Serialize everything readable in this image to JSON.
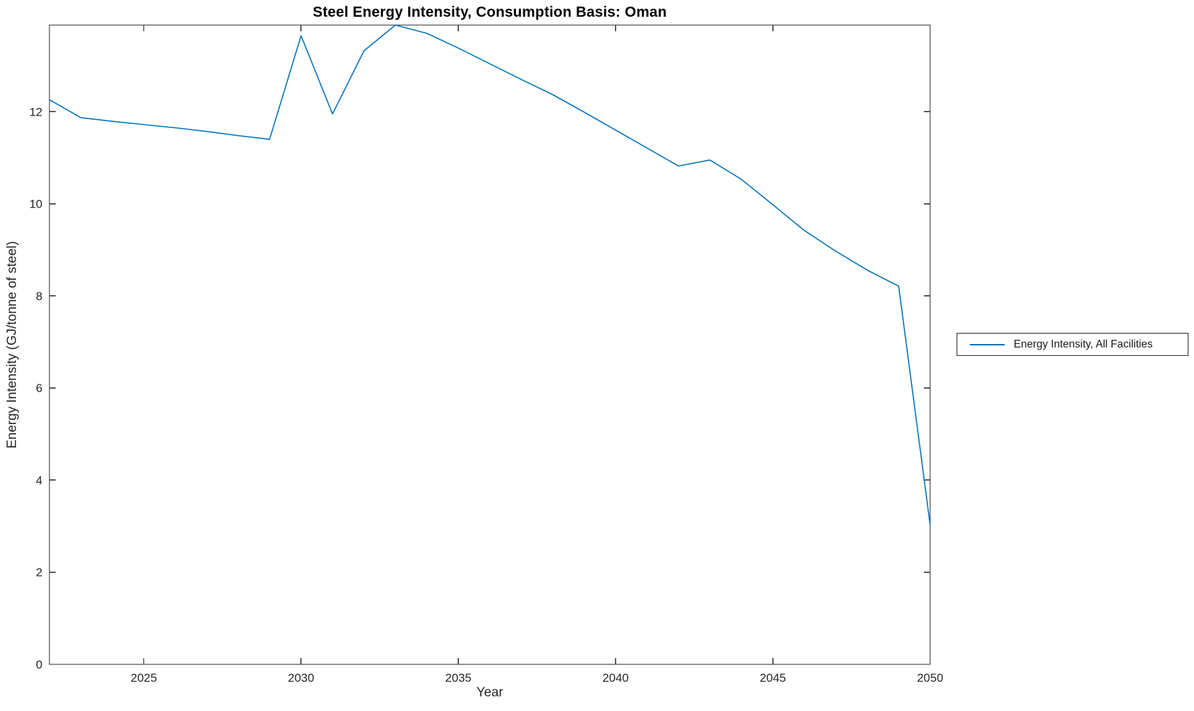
{
  "chart_data": {
    "type": "line",
    "title": "Steel Energy Intensity, Consumption Basis: Oman",
    "xlabel": "Year",
    "ylabel": "Energy Intensity (GJ/tonne of steel)",
    "xlim": [
      2022,
      2050
    ],
    "ylim": [
      0,
      13.88
    ],
    "x_ticks": [
      2025,
      2030,
      2035,
      2040,
      2045,
      2050
    ],
    "y_ticks": [
      0,
      2,
      4,
      6,
      8,
      10,
      12
    ],
    "grid": false,
    "legend_position": "right-outside",
    "axis_color": "#262626",
    "x": [
      2022,
      2023,
      2024,
      2025,
      2026,
      2027,
      2028,
      2029,
      2030,
      2031,
      2032,
      2033,
      2034,
      2035,
      2036,
      2037,
      2038,
      2039,
      2040,
      2041,
      2042,
      2043,
      2044,
      2045,
      2046,
      2047,
      2048,
      2049,
      2050
    ],
    "series": [
      {
        "name": "Energy Intensity, All Facilities",
        "color": "#0072BD",
        "values": [
          12.26,
          11.87,
          11.79,
          11.72,
          11.65,
          11.57,
          11.48,
          11.4,
          13.65,
          11.95,
          13.32,
          13.88,
          13.7,
          13.38,
          13.04,
          12.7,
          12.37,
          11.99,
          11.6,
          11.21,
          10.82,
          10.95,
          10.53,
          9.98,
          9.42,
          8.97,
          8.56,
          8.21,
          3.03
        ]
      }
    ]
  }
}
